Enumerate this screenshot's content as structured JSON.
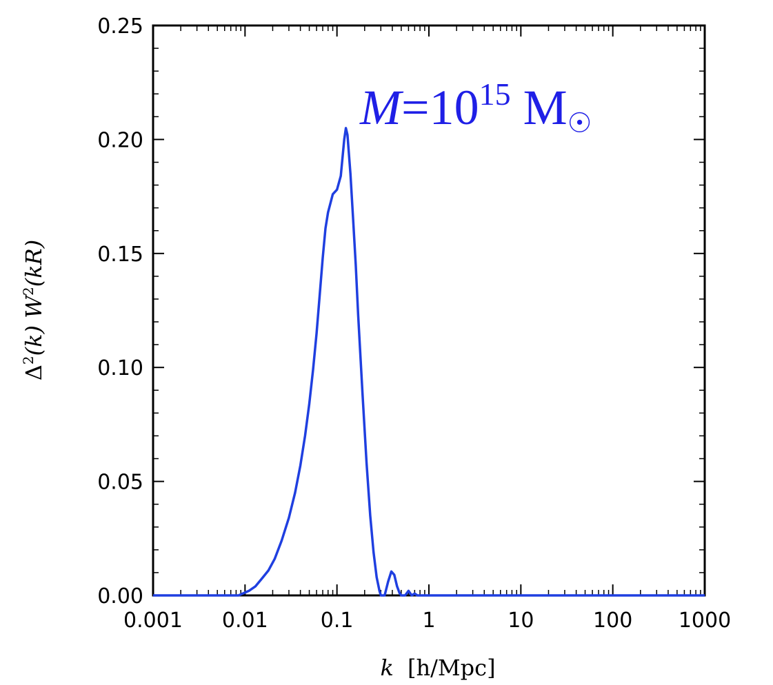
{
  "chart_data": {
    "type": "line",
    "xscale": "log",
    "xlim": [
      0.001,
      1000
    ],
    "ylim": [
      0,
      0.25
    ],
    "xticks": [
      {
        "value": 0.001,
        "label": "0.001"
      },
      {
        "value": 0.01,
        "label": "0.01"
      },
      {
        "value": 0.1,
        "label": "0.1"
      },
      {
        "value": 1,
        "label": "1"
      },
      {
        "value": 10,
        "label": "10"
      },
      {
        "value": 100,
        "label": "100"
      },
      {
        "value": 1000,
        "label": "1000"
      }
    ],
    "yticks": [
      {
        "value": 0,
        "label": "0.00"
      },
      {
        "value": 0.05,
        "label": "0.05"
      },
      {
        "value": 0.1,
        "label": "0.10"
      },
      {
        "value": 0.15,
        "label": "0.15"
      },
      {
        "value": 0.2,
        "label": "0.20"
      },
      {
        "value": 0.25,
        "label": "0.25"
      }
    ],
    "xlabel": {
      "k": "k",
      "units": "[h/Mpc]"
    },
    "ylabel": {
      "prefix": "Δ",
      "sq": "2",
      "mid": "(k)  W",
      "sq2": "2",
      "suffix": "(kR)"
    },
    "annotation": {
      "m": "M",
      "eq": "=10",
      "exp": "15",
      "unit": "M",
      "sun": "☉"
    },
    "grid": false,
    "series": [
      {
        "color": "#1f3fe0",
        "x": [
          0.001,
          0.0085,
          0.011,
          0.013,
          0.015,
          0.018,
          0.021,
          0.025,
          0.03,
          0.035,
          0.04,
          0.045,
          0.05,
          0.055,
          0.06,
          0.065,
          0.07,
          0.075,
          0.08,
          0.09,
          0.1,
          0.11,
          0.12,
          0.125,
          0.13,
          0.14,
          0.15,
          0.16,
          0.17,
          0.19,
          0.21,
          0.23,
          0.25,
          0.27,
          0.29,
          0.3,
          0.33,
          0.36,
          0.39,
          0.42,
          0.45,
          0.48,
          0.5,
          0.55,
          0.6,
          0.65,
          0.7,
          0.75,
          0.8,
          1000
        ],
        "y": [
          0,
          0,
          0.002,
          0.004,
          0.007,
          0.011,
          0.016,
          0.024,
          0.034,
          0.045,
          0.057,
          0.07,
          0.084,
          0.099,
          0.115,
          0.132,
          0.148,
          0.161,
          0.168,
          0.176,
          0.178,
          0.184,
          0.2,
          0.205,
          0.202,
          0.185,
          0.165,
          0.145,
          0.123,
          0.088,
          0.058,
          0.035,
          0.019,
          0.008,
          0.002,
          0,
          0,
          0.006,
          0.0105,
          0.009,
          0.004,
          0.001,
          0,
          0,
          0.002,
          0,
          0.0008,
          0,
          0,
          0
        ]
      }
    ]
  }
}
